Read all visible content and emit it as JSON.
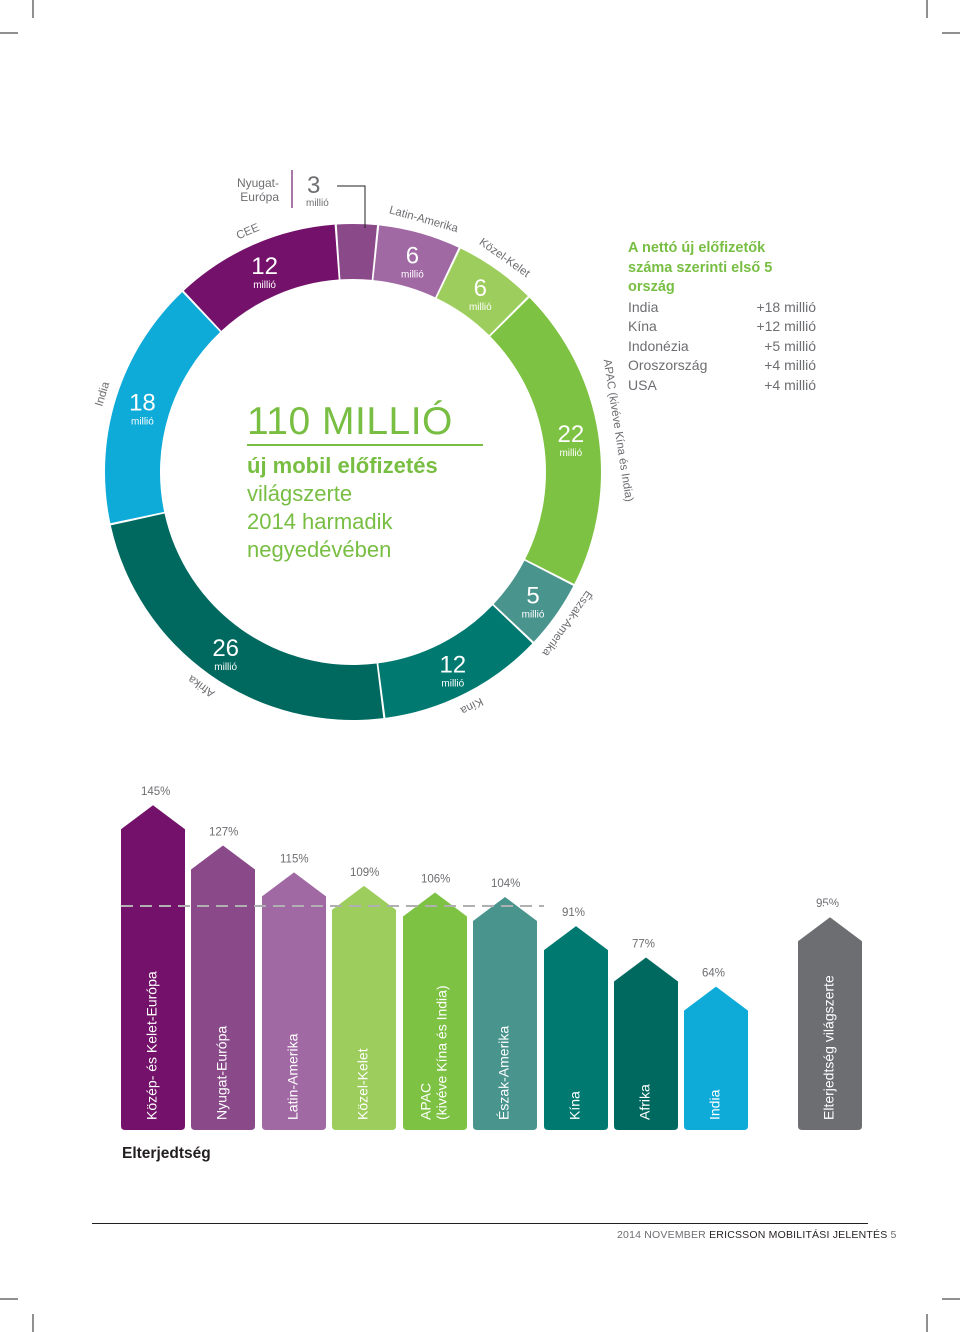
{
  "chart_data": [
    {
      "type": "pie",
      "center_title": "110 MILLIÓ",
      "center_subtitle_bold": "új mobil előfizetés",
      "center_subtitle_lines": [
        "világszerte",
        "2014 harmadik",
        "negyedévében"
      ],
      "unit": "millió",
      "slices": [
        {
          "name": "Nyugat-Európa",
          "value": 3,
          "value_label": "3",
          "color": "#8a4a8a"
        },
        {
          "name": "Latin-Amerika",
          "value": 6,
          "value_label": "6",
          "color": "#a069a3"
        },
        {
          "name": "Közel-Kelet",
          "value": 6,
          "value_label": "6",
          "color": "#9dcd5c"
        },
        {
          "name": "APAC (kivéve Kína és India)",
          "value": 22,
          "value_label": "22",
          "color": "#7dc242"
        },
        {
          "name": "Észak-Amerika",
          "value": 5,
          "value_label": "5",
          "color": "#4a948e"
        },
        {
          "name": "Kína",
          "value": 12,
          "value_label": "12",
          "color": "#007a70"
        },
        {
          "name": "Afrika",
          "value": 26,
          "value_label": "26",
          "color": "#00695f"
        },
        {
          "name": "India",
          "value": 18,
          "value_label": "18",
          "color": "#0eabd9"
        },
        {
          "name": "CEE",
          "value": 12,
          "value_label": "12",
          "color": "#74126b"
        }
      ]
    },
    {
      "type": "bar",
      "title": "Elterjedtség",
      "categories": [
        "Közép- és Kelet-Európa",
        "Nyugat-Európa",
        "Latin-Amerika",
        "Közel-Kelet",
        "APAC\n(kivéve Kína és India)",
        "Észak-Amerika",
        "Kína",
        "Afrika",
        "India",
        "Elterjedtség világszerte"
      ],
      "category_lines": [
        [
          "Közép- és Kelet-Európa"
        ],
        [
          "Nyugat-Európa"
        ],
        [
          "Latin-Amerika"
        ],
        [
          "Közel-Kelet"
        ],
        [
          "APAC",
          "(kivéve Kína és India)"
        ],
        [
          "Észak-Amerika"
        ],
        [
          "Kína"
        ],
        [
          "Afrika"
        ],
        [
          "India"
        ],
        [
          "Elterjedtség világszerte"
        ]
      ],
      "values": [
        145,
        127,
        115,
        109,
        106,
        104,
        91,
        77,
        64,
        95
      ],
      "value_labels": [
        "145%",
        "127%",
        "115%",
        "109%",
        "106%",
        "104%",
        "91%",
        "77%",
        "64%",
        "95%"
      ],
      "colors": [
        "#74126b",
        "#8a4a8a",
        "#a069a3",
        "#9dcd5c",
        "#7dc242",
        "#4a948e",
        "#007a70",
        "#00695f",
        "#0eabd9",
        "#6d6e71"
      ],
      "reference_line": 100
    }
  ],
  "top_countries": {
    "title_lines": [
      "A nettó új előfizetők",
      "száma szerinti első 5 ország"
    ],
    "rows": [
      {
        "country": "India",
        "value": "+18 millió"
      },
      {
        "country": "Kína",
        "value": "+12 millió"
      },
      {
        "country": "Indonézia",
        "value": "+5 millió"
      },
      {
        "country": "Oroszország",
        "value": "+4 millió"
      },
      {
        "country": "USA",
        "value": "+4 millió"
      }
    ]
  },
  "callout": {
    "region_lines": [
      "Nyugat-",
      "Európa"
    ],
    "value": "3",
    "unit": "millió"
  },
  "footer": {
    "date": "2014 NOVEMBER",
    "report": "ERICSSON MOBILITÁSI JELENTÉS",
    "page": "5"
  }
}
